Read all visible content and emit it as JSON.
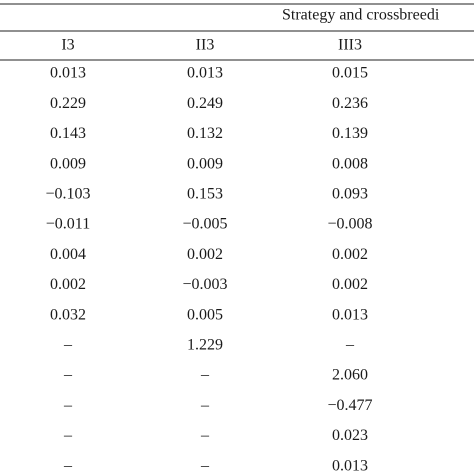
{
  "table": {
    "group_header": "Strategy and crossbreedi",
    "columns": [
      "I3",
      "II3",
      "III3"
    ],
    "rows": [
      [
        "0.013",
        "0.013",
        "0.015"
      ],
      [
        "0.229",
        "0.249",
        "0.236"
      ],
      [
        "0.143",
        "0.132",
        "0.139"
      ],
      [
        "0.009",
        "0.009",
        "0.008"
      ],
      [
        "−0.103",
        "0.153",
        "0.093"
      ],
      [
        "−0.011",
        "−0.005",
        "−0.008"
      ],
      [
        "0.004",
        "0.002",
        "0.002"
      ],
      [
        "0.002",
        "−0.003",
        "0.002"
      ],
      [
        "0.032",
        "0.005",
        "0.013"
      ],
      [
        "–",
        "1.229",
        "–"
      ],
      [
        "–",
        "–",
        "2.060"
      ],
      [
        "–",
        "–",
        "−0.477"
      ],
      [
        "–",
        "–",
        "0.023"
      ],
      [
        "–",
        "–",
        "0.013"
      ]
    ]
  }
}
